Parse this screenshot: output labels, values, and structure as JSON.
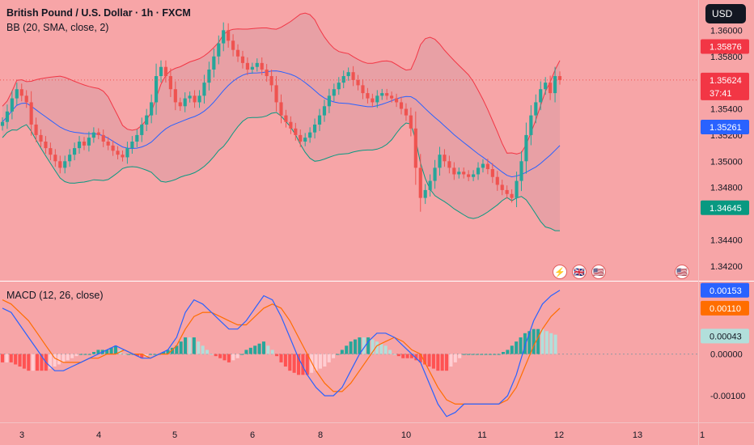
{
  "header": {
    "symbol_title": "British Pound / U.S. Dollar · 1h · FXCM",
    "bb_legend": "BB (20, SMA, close, 2)",
    "macd_legend": "MACD (12, 26, close)",
    "currency_button": "USD"
  },
  "events": [
    {
      "name": "lightning-event-icon",
      "glyph": "⚡"
    },
    {
      "name": "gb-flag-event-icon",
      "glyph": "🇬🇧"
    },
    {
      "name": "us-flag-event-icon",
      "glyph": "🇺🇸"
    },
    {
      "name": "us-flag-event-icon-2",
      "glyph": "🇺🇸"
    }
  ],
  "colors": {
    "background": "#f7a5a7",
    "candle_up": "#26a69a",
    "candle_down": "#ef5350",
    "bb_upper": "#f23645",
    "bb_basis": "#2962ff",
    "bb_lower": "#089981",
    "macd_line": "#2962ff",
    "signal_line": "#ff6d00",
    "hist_up_strong": "#26a69a",
    "hist_up_weak": "#b2dfdb",
    "hist_down_strong": "#ff5252",
    "hist_down_weak": "#ffcdd2"
  },
  "chart_data": [
    {
      "type": "candlestick",
      "title": "British Pound / U.S. Dollar · 1h · FXCM",
      "ylim": [
        1.341,
        1.362
      ],
      "y_ticks": [
        "1.36000",
        "1.35800",
        "1.35400",
        "1.35200",
        "1.35000",
        "1.34800",
        "1.34400",
        "1.34200"
      ],
      "x_ticks": [
        "3",
        "4",
        "5",
        "6",
        "8",
        "10",
        "11",
        "12",
        "13",
        "1"
      ],
      "close_series": [
        1.353,
        1.3538,
        1.3548,
        1.3555,
        1.355,
        1.3545,
        1.3528,
        1.352,
        1.3515,
        1.351,
        1.3505,
        1.35,
        1.3495,
        1.35,
        1.3505,
        1.351,
        1.3515,
        1.3512,
        1.3518,
        1.3522,
        1.352,
        1.3515,
        1.3512,
        1.3508,
        1.3505,
        1.3503,
        1.351,
        1.3515,
        1.352,
        1.3528,
        1.3535,
        1.3545,
        1.3565,
        1.3572,
        1.3565,
        1.3555,
        1.3545,
        1.3542,
        1.3548,
        1.355,
        1.3545,
        1.355,
        1.356,
        1.357,
        1.358,
        1.359,
        1.36,
        1.3592,
        1.3585,
        1.358,
        1.3575,
        1.357,
        1.3572,
        1.3575,
        1.357,
        1.3565,
        1.3558,
        1.3545,
        1.3535,
        1.353,
        1.3525,
        1.352,
        1.3515,
        1.3518,
        1.3522,
        1.3528,
        1.3535,
        1.3542,
        1.355,
        1.3555,
        1.356,
        1.3565,
        1.3568,
        1.3562,
        1.3558,
        1.3552,
        1.3548,
        1.3545,
        1.355,
        1.3552,
        1.355,
        1.3548,
        1.3545,
        1.354,
        1.3535,
        1.3525,
        1.3495,
        1.3472,
        1.3478,
        1.3485,
        1.3495,
        1.3505,
        1.35,
        1.3495,
        1.349,
        1.3492,
        1.349,
        1.3488,
        1.349,
        1.3495,
        1.3498,
        1.3494,
        1.3488,
        1.3482,
        1.3478,
        1.3475,
        1.3472,
        1.3485,
        1.35,
        1.352,
        1.3535,
        1.3545,
        1.3555,
        1.356,
        1.3552,
        1.3565,
        1.3562
      ],
      "bollinger": {
        "name": "BB (20, SMA, close, 2)",
        "current_upper": 1.35876,
        "current_basis": 1.35261,
        "current_lower": 1.34645
      },
      "price_labels": {
        "last_price": "1.35624",
        "countdown": "37:41",
        "upper": "1.35876",
        "basis": "1.35261",
        "lower": "1.34645"
      }
    },
    {
      "type": "macd",
      "title": "MACD (12, 26, close)",
      "ylim": [
        -0.0016,
        0.0017
      ],
      "y_ticks": [
        "0.00000",
        "-0.00100"
      ],
      "macd_series": [
        0.0011,
        0.001,
        0.0007,
        0.0004,
        0.0001,
        -0.0002,
        -0.0004,
        -0.0004,
        -0.0003,
        -0.0002,
        -0.0001,
        0.0,
        0.0001,
        0.0002,
        0.0001,
        0.0,
        -0.0001,
        -0.0001,
        0.0,
        0.0001,
        0.0004,
        0.001,
        0.0013,
        0.0012,
        0.001,
        0.0008,
        0.0006,
        0.0006,
        0.0008,
        0.0011,
        0.0014,
        0.0013,
        0.0009,
        0.0004,
        -0.0001,
        -0.0005,
        -0.0008,
        -0.001,
        -0.001,
        -0.0008,
        -0.0004,
        0.0,
        0.0003,
        0.0005,
        0.0005,
        0.0004,
        0.0002,
        0.0,
        -0.0002,
        -0.0007,
        -0.0012,
        -0.0015,
        -0.0014,
        -0.0012,
        -0.0012,
        -0.0012,
        -0.0012,
        -0.0012,
        -0.001,
        -0.0005,
        0.0002,
        0.0008,
        0.0012,
        0.0014,
        0.00153
      ],
      "signal_series": [
        0.0013,
        0.0012,
        0.001,
        0.0008,
        0.0005,
        0.0002,
        -0.0001,
        -0.0002,
        -0.0002,
        -0.0002,
        -0.0001,
        -0.0001,
        0.0,
        0.0,
        0.0001,
        0.0,
        0.0,
        -0.0001,
        0.0,
        0.0,
        0.0002,
        0.0006,
        0.0009,
        0.001,
        0.001,
        0.0009,
        0.0008,
        0.0007,
        0.0007,
        0.0009,
        0.0011,
        0.0012,
        0.0011,
        0.0008,
        0.0004,
        0.0,
        -0.0004,
        -0.0007,
        -0.0009,
        -0.0009,
        -0.0007,
        -0.0004,
        -0.0001,
        0.0002,
        0.0003,
        0.0004,
        0.0003,
        0.0001,
        0.0,
        -0.0004,
        -0.0008,
        -0.0011,
        -0.0012,
        -0.0012,
        -0.0012,
        -0.0012,
        -0.0012,
        -0.0012,
        -0.0011,
        -0.0008,
        -0.0003,
        0.0002,
        0.0006,
        0.0009,
        0.0011
      ],
      "value_labels": {
        "macd": "0.00153",
        "signal": "0.00110",
        "histogram": "0.00043"
      }
    }
  ]
}
